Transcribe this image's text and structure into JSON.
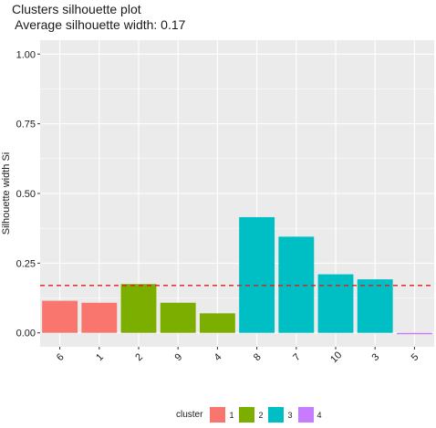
{
  "title": "Clusters silhouette plot",
  "subtitle": " Average silhouette width: 0.17",
  "chart_data": {
    "type": "bar",
    "categories": [
      "6",
      "1",
      "2",
      "9",
      "4",
      "8",
      "7",
      "10",
      "3",
      "5"
    ],
    "values": [
      0.115,
      0.108,
      0.175,
      0.108,
      0.07,
      0.415,
      0.345,
      0.21,
      0.192,
      -0.005
    ],
    "clusters": [
      "1",
      "1",
      "2",
      "2",
      "2",
      "3",
      "3",
      "3",
      "3",
      "4"
    ],
    "ylabel": "Silhouette width Si",
    "xlabel": "",
    "ylim": [
      -0.05,
      1.05
    ],
    "yticks": [
      "0.00",
      "0.25",
      "0.50",
      "0.75",
      "1.00"
    ],
    "ytick_values": [
      0,
      0.25,
      0.5,
      0.75,
      1.0
    ],
    "average_line": 0.17,
    "grid": true,
    "legend_position": "bottom"
  },
  "legend": {
    "title": "cluster",
    "items": [
      {
        "label": "1",
        "color": "#F8766D"
      },
      {
        "label": "2",
        "color": "#7CAE00"
      },
      {
        "label": "3",
        "color": "#00BFC4"
      },
      {
        "label": "4",
        "color": "#C77CFF"
      }
    ]
  },
  "colors": {
    "panel_background": "#EBEBEB",
    "gridline": "#FFFFFF",
    "average_line": "#E41A1C"
  }
}
